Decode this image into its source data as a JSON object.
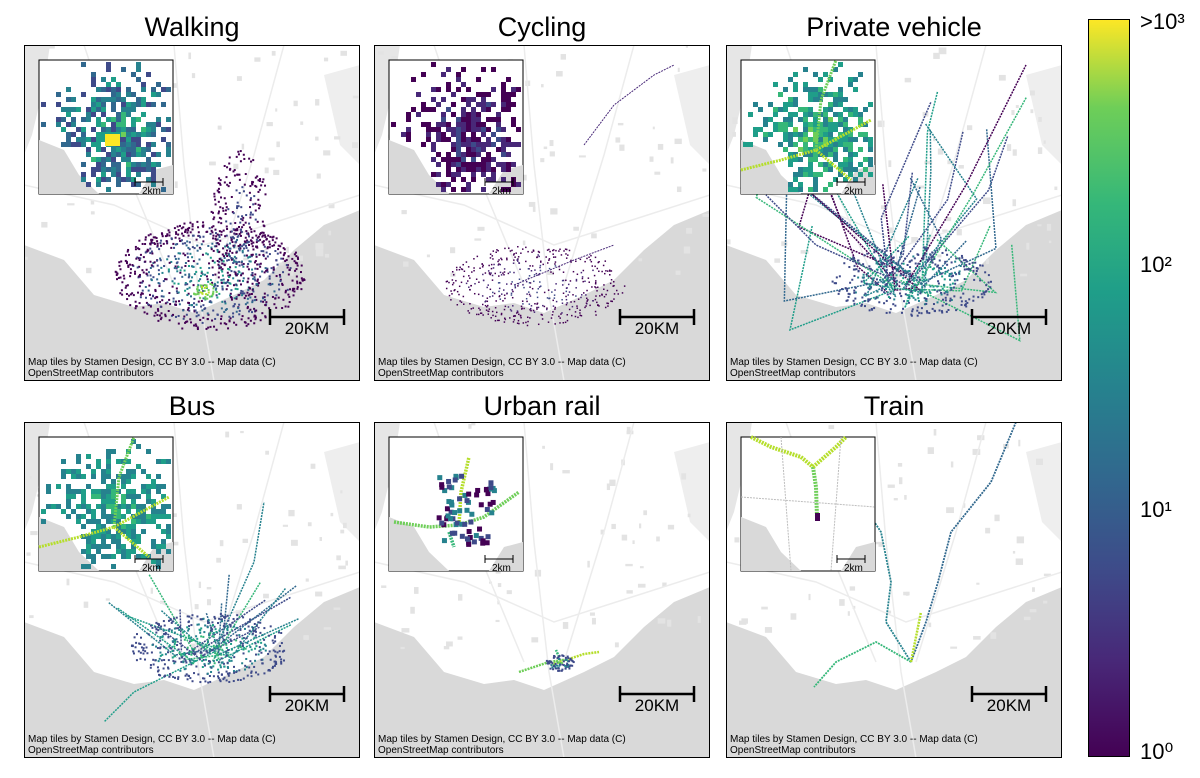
{
  "panels": [
    {
      "id": "walking",
      "title": "Walking",
      "inset": true,
      "inset_type": "blob",
      "main_type": "blob"
    },
    {
      "id": "cycling",
      "title": "Cycling",
      "inset": true,
      "inset_type": "sparse",
      "main_type": "sparse"
    },
    {
      "id": "private",
      "title": "Private vehicle",
      "inset": true,
      "inset_type": "roads",
      "main_type": "roads"
    },
    {
      "id": "bus",
      "title": "Bus",
      "inset": true,
      "inset_type": "bus",
      "main_type": "bus"
    },
    {
      "id": "rail",
      "title": "Urban rail",
      "inset": true,
      "inset_type": "rail",
      "main_type": "rail"
    },
    {
      "id": "train",
      "title": "Train",
      "inset": true,
      "inset_type": "train",
      "main_type": "train"
    }
  ],
  "scalebar_label": "20KM",
  "inset_scale_label": "2km",
  "attribution_line1": "Map tiles by Stamen Design, CC BY 3.0 -- Map data (C)",
  "attribution_line2": "OpenStreetMap contributors",
  "colorbar": {
    "colormap": "viridis",
    "scale": "log",
    "label_top": ">10³",
    "label_mid2": "10²",
    "label_mid1": "10¹",
    "label_bottom": "10⁰"
  },
  "colors": {
    "viridis_0": "#440154",
    "viridis_25": "#3b528b",
    "viridis_50": "#21918c",
    "viridis_75": "#5ec962",
    "viridis_100": "#fde725",
    "sea": "#d9d9d9",
    "land": "#ffffff"
  }
}
